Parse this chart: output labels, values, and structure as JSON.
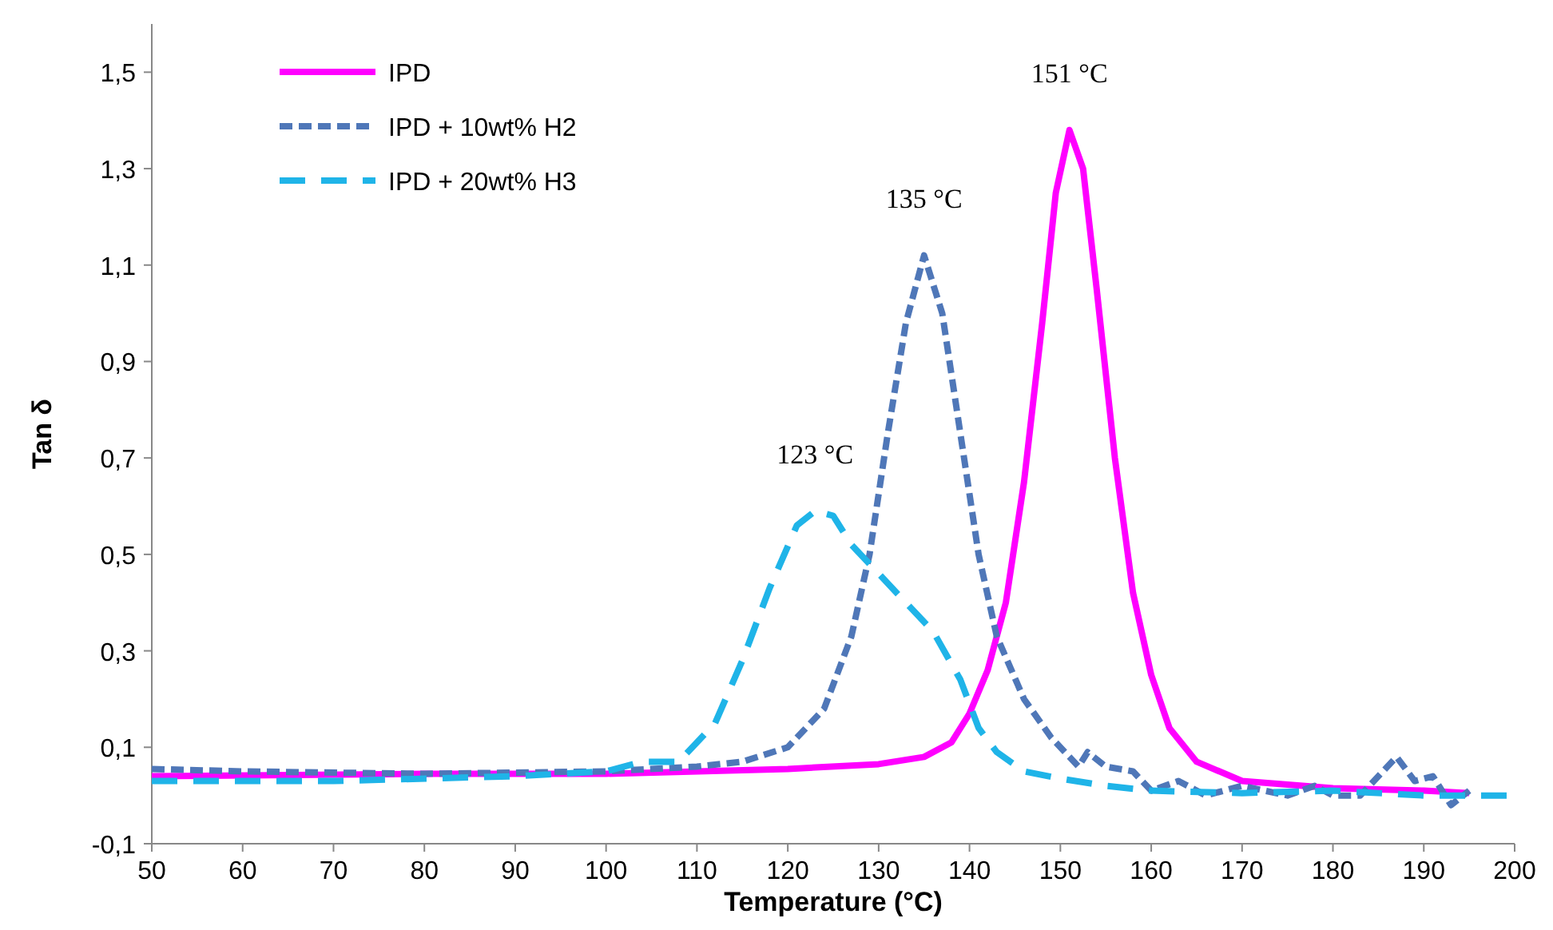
{
  "chart_data": {
    "type": "line",
    "xlabel": "Temperature (°C)",
    "ylabel": "Tan δ",
    "xlim": [
      50,
      200
    ],
    "xticks": [
      50,
      60,
      70,
      80,
      90,
      100,
      110,
      120,
      130,
      140,
      150,
      160,
      170,
      180,
      190,
      200
    ],
    "ylim": [
      -0.1,
      1.6
    ],
    "yticks": [
      {
        "value": -0.1,
        "label": "-0,1"
      },
      {
        "value": 0.1,
        "label": "0,1"
      },
      {
        "value": 0.3,
        "label": "0,3"
      },
      {
        "value": 0.5,
        "label": "0,5"
      },
      {
        "value": 0.7,
        "label": "0,7"
      },
      {
        "value": 0.9,
        "label": "0,9"
      },
      {
        "value": 1.1,
        "label": "1,1"
      },
      {
        "value": 1.3,
        "label": "1,3"
      },
      {
        "value": 1.5,
        "label": "1,5"
      }
    ],
    "grid": false,
    "legend": "top left",
    "series": [
      {
        "name": "IPD",
        "color": "#ff00ff",
        "line_style": "solid",
        "x": [
          50,
          80,
          100,
          120,
          130,
          135,
          138,
          140,
          142,
          144,
          146,
          148,
          149.5,
          151,
          152.5,
          154,
          156,
          158,
          160,
          162,
          165,
          170,
          180,
          190,
          195
        ],
        "values": [
          0.04,
          0.045,
          0.045,
          0.055,
          0.065,
          0.08,
          0.11,
          0.17,
          0.26,
          0.4,
          0.65,
          0.98,
          1.25,
          1.38,
          1.3,
          1.05,
          0.7,
          0.42,
          0.25,
          0.14,
          0.07,
          0.03,
          0.015,
          0.01,
          0.005
        ]
      },
      {
        "name": "IPD + 10wt% H2",
        "color": "#4f77b8",
        "line_style": "dashed",
        "x": [
          50,
          60,
          80,
          100,
          110,
          115,
          120,
          124,
          127,
          129,
          131,
          133,
          135,
          137,
          139,
          141,
          143,
          146,
          149,
          152,
          153,
          155,
          158,
          160,
          163,
          166,
          170,
          175,
          178,
          180,
          183,
          187,
          189,
          191,
          193,
          195
        ],
        "values": [
          0.055,
          0.05,
          0.045,
          0.05,
          0.06,
          0.07,
          0.1,
          0.18,
          0.33,
          0.5,
          0.75,
          0.98,
          1.12,
          1.0,
          0.75,
          0.5,
          0.33,
          0.2,
          0.12,
          0.06,
          0.09,
          0.06,
          0.05,
          0.01,
          0.03,
          0.0,
          0.02,
          0.0,
          0.02,
          0.0,
          0.0,
          0.08,
          0.03,
          0.04,
          -0.02,
          0.01
        ]
      },
      {
        "name": "IPD + 20wt% H3",
        "color": "#1fb4e8",
        "line_style": "dashed",
        "x": [
          50,
          70,
          90,
          100,
          104,
          108,
          112,
          115,
          118,
          121,
          123,
          125,
          127,
          130,
          133,
          136,
          139,
          141,
          143,
          146,
          150,
          155,
          160,
          170,
          180,
          190,
          200
        ],
        "values": [
          0.03,
          0.03,
          0.04,
          0.05,
          0.07,
          0.07,
          0.15,
          0.28,
          0.43,
          0.56,
          0.59,
          0.58,
          0.52,
          0.46,
          0.4,
          0.34,
          0.24,
          0.14,
          0.09,
          0.05,
          0.035,
          0.02,
          0.01,
          0.005,
          0.01,
          0.0,
          0.0
        ]
      }
    ],
    "annotations": [
      {
        "text": "151 °C",
        "x": 151,
        "y": 1.38
      },
      {
        "text": "135 °C",
        "x": 135,
        "y": 1.12
      },
      {
        "text": "123 °C",
        "x": 123,
        "y": 0.59
      }
    ]
  }
}
